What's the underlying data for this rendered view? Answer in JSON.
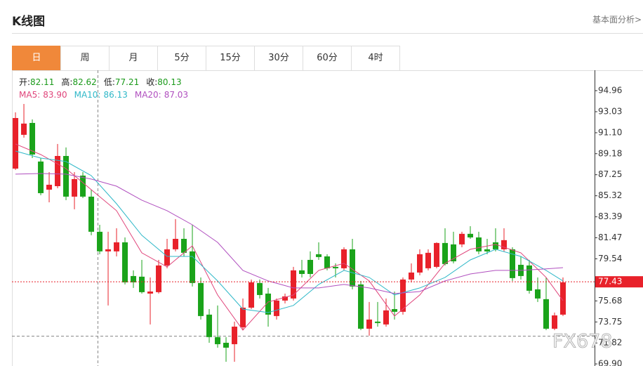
{
  "header": {
    "title": "K线图",
    "link": "基本面分析>"
  },
  "tabs": [
    "日",
    "周",
    "月",
    "5分",
    "15分",
    "30分",
    "60分",
    "4时"
  ],
  "active_tab": "日",
  "chart_data": {
    "type": "candlestick",
    "ohlc_info": [
      {
        "label": "开:",
        "value": "82.11"
      },
      {
        "label": "高:",
        "value": "82.62"
      },
      {
        "label": "低:",
        "value": "77.21"
      },
      {
        "label": "收:",
        "value": "80.13"
      }
    ],
    "info_value_color": "#1a9a1a",
    "up_color": "#e8212a",
    "down_color": "#1aa31a",
    "open": [
      87.81,
      90.91,
      92.0,
      88.46,
      85.88,
      86.2,
      88.97,
      85.24,
      87.17,
      85.24,
      82.02,
      80.22,
      80.22,
      81.05,
      77.96,
      77.9,
      76.35,
      76.48,
      78.93,
      80.41,
      81.37,
      80.22,
      77.32,
      74.42,
      72.36,
      71.84,
      71.71,
      73.26,
      75.06,
      77.32,
      76.35,
      74.29,
      75.71,
      75.9,
      78.48,
      79.44,
      79.96,
      79.76,
      78.8,
      78.67,
      80.41,
      77.19,
      73.13,
      73.78,
      73.52,
      74.93,
      74.68,
      77.64,
      78.28,
      78.67,
      78.8,
      80.99,
      80.86,
      80.86,
      81.83,
      81.5,
      80.41,
      81.05,
      80.41,
      80.41,
      78.99,
      78.93,
      76.74,
      75.84,
      73.13,
      74.42
    ],
    "high": [
      92.97,
      93.74,
      92.32,
      88.78,
      87.49,
      90.07,
      89.75,
      87.49,
      87.49,
      85.88,
      82.66,
      82.02,
      82.34,
      81.5,
      78.48,
      79.44,
      77.83,
      79.44,
      81.37,
      83.18,
      82.34,
      82.66,
      77.83,
      74.93,
      75.26,
      72.36,
      73.78,
      75.9,
      77.64,
      77.64,
      76.87,
      75.9,
      76.35,
      78.8,
      79.44,
      80.22,
      81.05,
      79.96,
      79.12,
      80.6,
      81.37,
      77.51,
      75.58,
      75.58,
      75.9,
      76.54,
      77.83,
      79.12,
      80.41,
      80.41,
      81.05,
      82.34,
      82.02,
      82.02,
      82.53,
      82.02,
      81.37,
      82.34,
      82.34,
      80.6,
      79.76,
      79.44,
      77.83,
      77.83,
      74.61,
      77.83
    ],
    "low": [
      87.69,
      90.65,
      88.78,
      85.37,
      84.72,
      86.01,
      84.92,
      84.08,
      85.11,
      81.7,
      79.96,
      75.26,
      79.76,
      77.19,
      76.87,
      76.35,
      73.52,
      76.35,
      78.67,
      80.22,
      79.76,
      77.0,
      73.97,
      71.84,
      71.39,
      70.1,
      70.1,
      73.0,
      74.93,
      75.9,
      73.32,
      73.97,
      75.45,
      75.71,
      77.83,
      77.83,
      79.44,
      78.48,
      77.83,
      78.48,
      76.74,
      73.0,
      72.49,
      73.32,
      73.32,
      73.97,
      74.42,
      77.38,
      78.03,
      78.48,
      78.67,
      78.93,
      79.12,
      80.6,
      81.37,
      79.96,
      79.96,
      80.22,
      80.22,
      77.51,
      77.64,
      76.35,
      75.58,
      73.0,
      73.0,
      74.29
    ],
    "close": [
      92.45,
      91.94,
      89.1,
      85.56,
      86.33,
      88.97,
      85.24,
      86.85,
      85.24,
      82.02,
      80.22,
      80.41,
      81.05,
      77.38,
      77.38,
      76.48,
      76.54,
      78.93,
      80.41,
      81.37,
      80.09,
      77.32,
      74.29,
      72.36,
      71.71,
      71.39,
      73.32,
      75.06,
      77.38,
      76.22,
      74.42,
      75.71,
      76.09,
      78.48,
      78.15,
      78.15,
      79.7,
      78.67,
      78.67,
      80.41,
      77.0,
      73.13,
      73.97,
      73.65,
      74.81,
      74.68,
      77.64,
      78.28,
      79.96,
      80.09,
      80.99,
      79.06,
      79.31,
      81.83,
      81.5,
      80.22,
      80.22,
      80.41,
      81.25,
      77.77,
      77.96,
      76.61,
      75.9,
      73.13,
      74.35,
      77.38
    ],
    "series": [
      {
        "name": "MA5:",
        "info_value": "83.90",
        "color": "#e0457b",
        "x": [
          0,
          3,
          6,
          9,
          12,
          15,
          18,
          21,
          24,
          27,
          30,
          33,
          36,
          39,
          42,
          45,
          48,
          51,
          54,
          57,
          60,
          63,
          65
        ],
        "values": [
          90.07,
          89.1,
          87.81,
          85.88,
          83.95,
          80.09,
          78.8,
          80.73,
          76.22,
          73.0,
          75.58,
          76.22,
          78.48,
          79.12,
          77.51,
          74.29,
          76.22,
          79.12,
          80.41,
          80.86,
          80.09,
          77.83,
          75.71
        ]
      },
      {
        "name": "MA10:",
        "info_value": "86.13",
        "color": "#2fb8c8",
        "x": [
          0,
          3,
          6,
          9,
          12,
          15,
          18,
          21,
          24,
          27,
          30,
          33,
          36,
          39,
          42,
          45,
          48,
          51,
          54,
          57,
          60,
          63,
          65
        ],
        "values": [
          89.42,
          88.78,
          88.46,
          87.17,
          84.59,
          81.7,
          79.76,
          79.76,
          77.51,
          74.93,
          74.61,
          75.26,
          77.19,
          78.48,
          77.83,
          76.22,
          76.87,
          77.83,
          79.44,
          80.41,
          79.76,
          78.48,
          77.51
        ]
      },
      {
        "name": "MA20:",
        "info_value": "87.03",
        "color": "#b04fbf",
        "x": [
          0,
          3,
          6,
          9,
          12,
          15,
          18,
          21,
          24,
          27,
          30,
          33,
          36,
          39,
          42,
          45,
          48,
          51,
          54,
          57,
          60,
          63,
          65
        ],
        "values": [
          87.3,
          87.36,
          87.3,
          86.85,
          86.2,
          84.92,
          83.95,
          82.66,
          81.05,
          78.48,
          77.51,
          76.87,
          76.87,
          77.19,
          76.87,
          76.35,
          76.54,
          77.51,
          78.15,
          78.48,
          78.48,
          78.61,
          78.73
        ]
      }
    ],
    "last_price": 77.43,
    "last_price_color": "#e8212a",
    "watermark": "FX678",
    "xlim": [
      -0.42,
      68.75
    ],
    "ylim": [
      69.71,
      96.83
    ],
    "yticks": [
      94.96,
      93.03,
      {
        "value": 91.1,
        "label": "91.10"
      },
      89.18,
      87.25,
      85.32,
      83.39,
      81.47,
      79.54,
      75.68,
      73.75,
      71.82,
      {
        "value": 69.9,
        "label": "69.90"
      }
    ]
  }
}
